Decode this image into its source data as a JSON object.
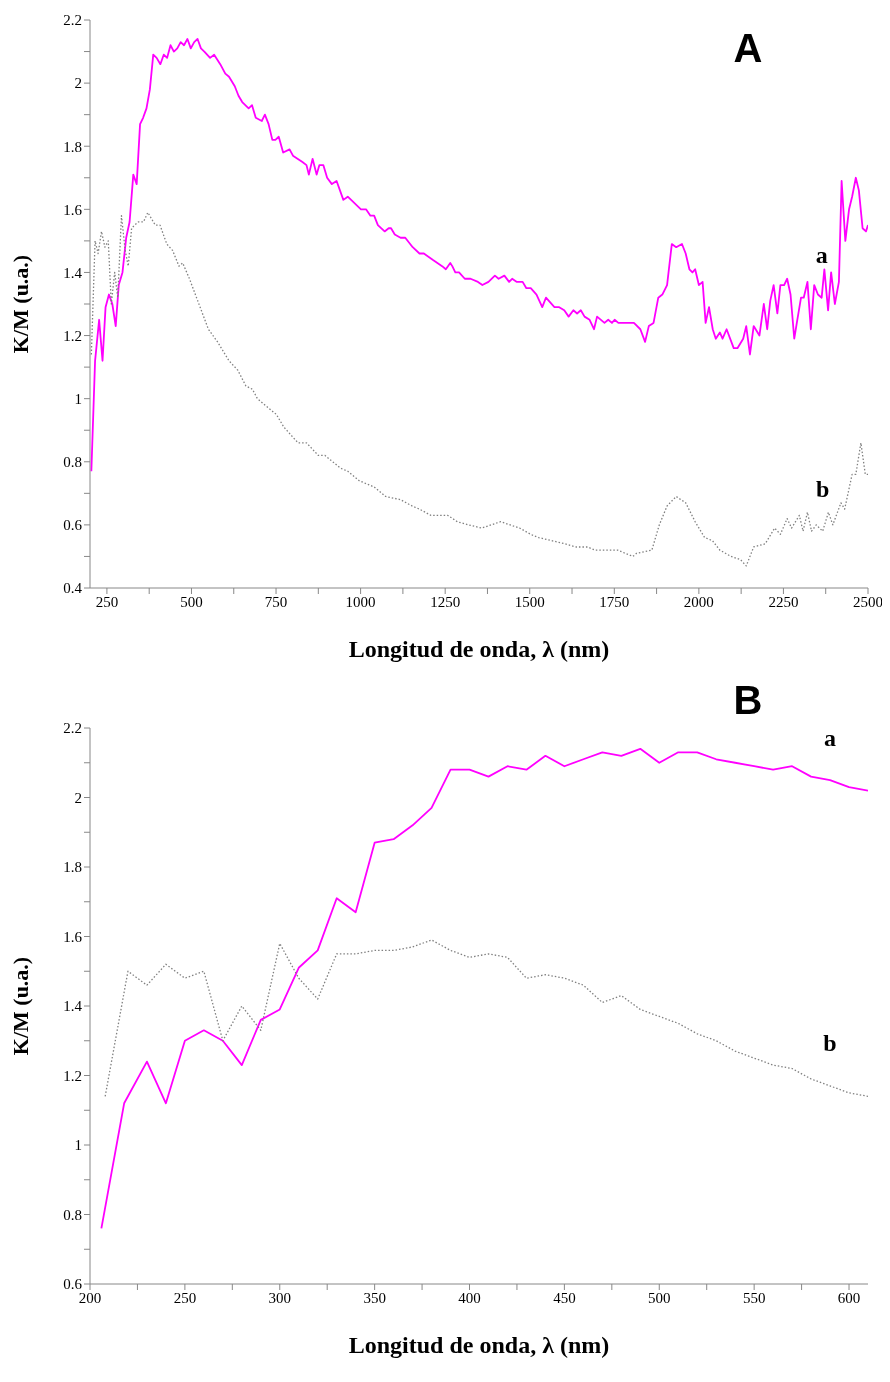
{
  "chart_data": [
    {
      "type": "line",
      "title": "A",
      "xlabel": "Longitud de onda, λ (nm)",
      "ylabel": "K/M (u.a.)",
      "xlim": [
        200,
        2500
      ],
      "ylim": [
        0.4,
        2.2
      ],
      "xticks": [
        250,
        {
          "value": 375,
          "label": null
        },
        500,
        {
          "value": 625,
          "label": null
        },
        750,
        {
          "value": 875,
          "label": null
        },
        1000,
        {
          "value": 1125,
          "label": null
        },
        1250,
        {
          "value": 1375,
          "label": null
        },
        1500,
        {
          "value": 1625,
          "label": null
        },
        1750,
        {
          "value": 1875,
          "label": null
        },
        2000,
        {
          "value": 2125,
          "label": null
        },
        2250,
        {
          "value": 2375,
          "label": null
        },
        2500
      ],
      "yticks": [
        0.4,
        {
          "value": 0.5,
          "label": null
        },
        0.6,
        {
          "value": 0.7,
          "label": null
        },
        0.8,
        {
          "value": 0.9,
          "label": null
        },
        1.0,
        {
          "value": 1.1,
          "label": null
        },
        1.2,
        {
          "value": 1.3,
          "label": null
        },
        1.4,
        {
          "value": 1.5,
          "label": null
        },
        1.6,
        {
          "value": 1.7,
          "label": null
        },
        1.8,
        {
          "value": 1.9,
          "label": null
        },
        2.0,
        {
          "value": 2.1,
          "label": null
        },
        2.2
      ],
      "series": [
        {
          "name": "a",
          "color": "#ff00ff",
          "line_style": "solid",
          "x": [
            204,
            215,
            227,
            237,
            246,
            256,
            266,
            276,
            285,
            296,
            307,
            317,
            328,
            338,
            348,
            357,
            367,
            377,
            387,
            397,
            408,
            418,
            428,
            438,
            448,
            458,
            468,
            478,
            488,
            498,
            508,
            518,
            528,
            538,
            555,
            567,
            585,
            600,
            611,
            628,
            639,
            650,
            669,
            679,
            690,
            708,
            717,
            728,
            739,
            748,
            758,
            771,
            790,
            800,
            828,
            840,
            847,
            858,
            870,
            878,
            890,
            901,
            915,
            929,
            949,
            962,
            1001,
            1016,
            1029,
            1040,
            1051,
            1071,
            1083,
            1090,
            1101,
            1118,
            1132,
            1154,
            1174,
            1187,
            1213,
            1241,
            1252,
            1265,
            1271,
            1280,
            1291,
            1308,
            1325,
            1347,
            1360,
            1378,
            1397,
            1408,
            1425,
            1439,
            1448,
            1462,
            1479,
            1490,
            1503,
            1520,
            1537,
            1548,
            1573,
            1587,
            1602,
            1615,
            1629,
            1640,
            1651,
            1662,
            1677,
            1690,
            1699,
            1721,
            1732,
            1743,
            1751,
            1762,
            1776,
            1788,
            1808,
            1827,
            1841,
            1852,
            1866,
            1880,
            1892,
            1906,
            1920,
            1933,
            1950,
            1961,
            1972,
            1981,
            1989,
            2000,
            2011,
            2020,
            2030,
            2041,
            2050,
            2062,
            2070,
            2082,
            2103,
            2114,
            2131,
            2140,
            2151,
            2162,
            2179,
            2192,
            2202,
            2211,
            2221,
            2232,
            2241,
            2252,
            2261,
            2271,
            2282,
            2291,
            2302,
            2310,
            2321,
            2331,
            2341,
            2352,
            2363,
            2371,
            2382,
            2391,
            2402,
            2414,
            2422,
            2433,
            2444,
            2453,
            2464,
            2473,
            2484,
            2494,
            2500
          ],
          "values": [
            0.77,
            1.12,
            1.25,
            1.12,
            1.29,
            1.33,
            1.3,
            1.23,
            1.36,
            1.4,
            1.51,
            1.56,
            1.71,
            1.68,
            1.87,
            1.89,
            1.92,
            1.98,
            2.09,
            2.08,
            2.06,
            2.09,
            2.08,
            2.12,
            2.1,
            2.11,
            2.13,
            2.12,
            2.14,
            2.11,
            2.13,
            2.14,
            2.11,
            2.1,
            2.08,
            2.09,
            2.06,
            2.03,
            2.02,
            1.99,
            1.96,
            1.94,
            1.92,
            1.93,
            1.89,
            1.88,
            1.9,
            1.87,
            1.82,
            1.82,
            1.83,
            1.78,
            1.79,
            1.77,
            1.75,
            1.74,
            1.71,
            1.76,
            1.71,
            1.74,
            1.74,
            1.7,
            1.68,
            1.69,
            1.63,
            1.64,
            1.6,
            1.6,
            1.58,
            1.58,
            1.55,
            1.53,
            1.54,
            1.54,
            1.52,
            1.51,
            1.51,
            1.48,
            1.46,
            1.46,
            1.44,
            1.42,
            1.41,
            1.43,
            1.42,
            1.4,
            1.4,
            1.38,
            1.38,
            1.37,
            1.36,
            1.37,
            1.39,
            1.38,
            1.39,
            1.37,
            1.38,
            1.37,
            1.37,
            1.35,
            1.35,
            1.33,
            1.29,
            1.32,
            1.29,
            1.29,
            1.28,
            1.26,
            1.28,
            1.27,
            1.28,
            1.26,
            1.25,
            1.22,
            1.26,
            1.24,
            1.25,
            1.24,
            1.25,
            1.24,
            1.24,
            1.24,
            1.24,
            1.22,
            1.18,
            1.23,
            1.24,
            1.32,
            1.33,
            1.36,
            1.49,
            1.48,
            1.49,
            1.46,
            1.41,
            1.4,
            1.41,
            1.36,
            1.37,
            1.24,
            1.29,
            1.22,
            1.19,
            1.21,
            1.19,
            1.22,
            1.16,
            1.16,
            1.19,
            1.23,
            1.14,
            1.23,
            1.2,
            1.3,
            1.22,
            1.31,
            1.36,
            1.27,
            1.36,
            1.36,
            1.38,
            1.33,
            1.19,
            1.25,
            1.32,
            1.32,
            1.37,
            1.22,
            1.36,
            1.33,
            1.32,
            1.41,
            1.28,
            1.4,
            1.3,
            1.37,
            1.69,
            1.5,
            1.6,
            1.64,
            1.7,
            1.66,
            1.54,
            1.53,
            1.55
          ]
        },
        {
          "name": "b",
          "color": "#808080",
          "line_style": "dotted",
          "x": [
            204,
            215,
            224,
            234,
            244,
            254,
            263,
            273,
            282,
            293,
            304,
            313,
            323,
            332,
            343,
            358,
            371,
            393,
            407,
            427,
            444,
            463,
            474,
            494,
            522,
            550,
            577,
            611,
            637,
            661,
            680,
            695,
            717,
            751,
            773,
            815,
            840,
            875,
            895,
            940,
            962,
            996,
            1040,
            1074,
            1118,
            1152,
            1174,
            1208,
            1241,
            1258,
            1286,
            1319,
            1358,
            1414,
            1470,
            1503,
            1526,
            1565,
            1604,
            1637,
            1671,
            1693,
            1732,
            1760,
            1805,
            1816,
            1861,
            1883,
            1906,
            1933,
            1961,
            1989,
            2017,
            2040,
            2062,
            2095,
            2123,
            2140,
            2162,
            2196,
            2224,
            2241,
            2261,
            2274,
            2297,
            2308,
            2321,
            2333,
            2347,
            2366,
            2383,
            2396,
            2420,
            2431,
            2453,
            2464,
            2479,
            2492,
            2500
          ],
          "values": [
            1.14,
            1.5,
            1.46,
            1.53,
            1.48,
            1.5,
            1.3,
            1.4,
            1.32,
            1.58,
            1.47,
            1.42,
            1.54,
            1.55,
            1.56,
            1.56,
            1.59,
            1.55,
            1.55,
            1.49,
            1.47,
            1.42,
            1.43,
            1.38,
            1.3,
            1.22,
            1.18,
            1.12,
            1.09,
            1.04,
            1.03,
            1.0,
            0.98,
            0.95,
            0.91,
            0.86,
            0.86,
            0.82,
            0.82,
            0.78,
            0.77,
            0.74,
            0.72,
            0.69,
            0.68,
            0.66,
            0.65,
            0.63,
            0.63,
            0.63,
            0.61,
            0.6,
            0.59,
            0.61,
            0.59,
            0.57,
            0.56,
            0.55,
            0.54,
            0.53,
            0.53,
            0.52,
            0.52,
            0.52,
            0.5,
            0.51,
            0.52,
            0.6,
            0.66,
            0.69,
            0.67,
            0.61,
            0.56,
            0.55,
            0.52,
            0.5,
            0.49,
            0.47,
            0.53,
            0.54,
            0.59,
            0.57,
            0.62,
            0.59,
            0.63,
            0.58,
            0.64,
            0.58,
            0.6,
            0.58,
            0.64,
            0.6,
            0.67,
            0.65,
            0.76,
            0.76,
            0.86,
            0.76,
            0.76
          ]
        }
      ]
    },
    {
      "type": "line",
      "title": "B",
      "xlabel": "Longitud de onda, λ (nm)",
      "ylabel": "K/M (u.a.)",
      "xlim": [
        200,
        610
      ],
      "ylim": [
        0.6,
        2.2
      ],
      "xticks": [
        200,
        {
          "value": 225,
          "label": null
        },
        250,
        {
          "value": 275,
          "label": null
        },
        300,
        {
          "value": 325,
          "label": null
        },
        350,
        {
          "value": 375,
          "label": null
        },
        400,
        {
          "value": 425,
          "label": null
        },
        450,
        {
          "value": 475,
          "label": null
        },
        500,
        {
          "value": 525,
          "label": null
        },
        550,
        {
          "value": 575,
          "label": null
        },
        600
      ],
      "yticks": [
        0.6,
        {
          "value": 0.7,
          "label": null
        },
        0.8,
        {
          "value": 0.9,
          "label": null
        },
        1.0,
        {
          "value": 1.1,
          "label": null
        },
        1.2,
        {
          "value": 1.3,
          "label": null
        },
        1.4,
        {
          "value": 1.5,
          "label": null
        },
        1.6,
        {
          "value": 1.7,
          "label": null
        },
        1.8,
        {
          "value": 1.9,
          "label": null
        },
        2.0,
        {
          "value": 2.1,
          "label": null
        },
        2.2
      ],
      "series": [
        {
          "name": "a",
          "color": "#ff00ff",
          "line_style": "solid",
          "x": [
            206,
            218,
            230,
            240,
            250,
            260,
            270,
            280,
            290,
            300,
            310,
            320,
            330,
            340,
            350,
            360,
            370,
            380,
            390,
            400,
            410,
            420,
            430,
            440,
            450,
            460,
            470,
            480,
            490,
            500,
            510,
            520,
            530,
            540,
            550,
            560,
            570,
            580,
            590,
            600,
            610
          ],
          "values": [
            0.76,
            1.12,
            1.24,
            1.12,
            1.3,
            1.33,
            1.3,
            1.23,
            1.36,
            1.39,
            1.51,
            1.56,
            1.71,
            1.67,
            1.87,
            1.88,
            1.92,
            1.97,
            2.08,
            2.08,
            2.06,
            2.09,
            2.08,
            2.12,
            2.09,
            2.11,
            2.13,
            2.12,
            2.14,
            2.1,
            2.13,
            2.13,
            2.11,
            2.1,
            2.09,
            2.08,
            2.09,
            2.06,
            2.05,
            2.03,
            2.02
          ]
        },
        {
          "name": "b",
          "color": "#808080",
          "line_style": "dotted",
          "x": [
            208,
            220,
            230,
            240,
            250,
            260,
            270,
            280,
            290,
            300,
            310,
            320,
            330,
            340,
            350,
            360,
            370,
            380,
            390,
            400,
            410,
            420,
            430,
            440,
            450,
            460,
            470,
            480,
            490,
            500,
            510,
            520,
            530,
            540,
            550,
            560,
            570,
            580,
            590,
            600,
            610
          ],
          "values": [
            1.14,
            1.5,
            1.46,
            1.52,
            1.48,
            1.5,
            1.3,
            1.4,
            1.33,
            1.58,
            1.48,
            1.42,
            1.55,
            1.55,
            1.56,
            1.56,
            1.57,
            1.59,
            1.56,
            1.54,
            1.55,
            1.54,
            1.48,
            1.49,
            1.48,
            1.46,
            1.41,
            1.43,
            1.39,
            1.37,
            1.35,
            1.32,
            1.3,
            1.27,
            1.25,
            1.23,
            1.22,
            1.19,
            1.17,
            1.15,
            1.14
          ]
        }
      ]
    }
  ]
}
